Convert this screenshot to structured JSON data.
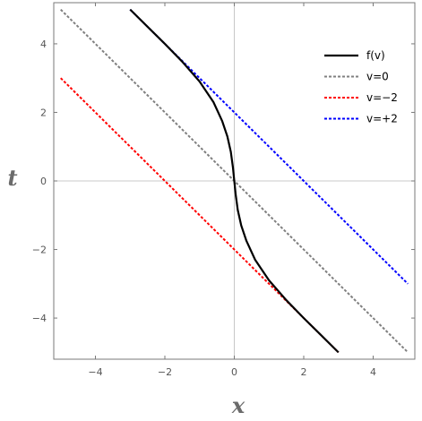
{
  "chart_data": {
    "type": "line",
    "xlabel": "x",
    "ylabel": "t",
    "xlim": [
      -5.2,
      5.2
    ],
    "ylim": [
      -5.2,
      5.2
    ],
    "x_ticks": [
      -4,
      -2,
      0,
      2,
      4
    ],
    "y_ticks": [
      -4,
      -2,
      0,
      2,
      4
    ],
    "x_tick_labels": [
      "−4",
      "−2",
      "0",
      "2",
      "4"
    ],
    "y_tick_labels": [
      "−4",
      "−2",
      "0",
      "2",
      "4"
    ],
    "grid": false,
    "zero_axes": true,
    "legend_position": "top-right",
    "series": [
      {
        "name": "f(v)",
        "color": "#000000",
        "style": "solid",
        "x": [
          -3,
          -2.5,
          -2,
          -1.5,
          -1,
          -0.6,
          -0.35,
          -0.2,
          -0.1,
          -0.04,
          0,
          0.04,
          0.1,
          0.2,
          0.35,
          0.6,
          1,
          1.5,
          2,
          2.5,
          3
        ],
        "y": [
          5,
          4.5,
          4.0,
          3.48,
          2.9,
          2.3,
          1.75,
          1.3,
          0.85,
          0.4,
          0,
          -0.4,
          -0.85,
          -1.3,
          -1.75,
          -2.3,
          -2.9,
          -3.48,
          -4.0,
          -4.5,
          -5
        ]
      },
      {
        "name": "v=0",
        "color": "#808080",
        "style": "dotted",
        "x": [
          -5,
          5
        ],
        "y": [
          5,
          -5
        ]
      },
      {
        "name": "v=−2",
        "color": "#ff0000",
        "style": "dotted",
        "x": [
          -5,
          3
        ],
        "y": [
          3,
          -5
        ]
      },
      {
        "name": "v=+2",
        "color": "#0000ff",
        "style": "dotted",
        "x": [
          -3,
          5
        ],
        "y": [
          5,
          -3
        ]
      }
    ]
  }
}
